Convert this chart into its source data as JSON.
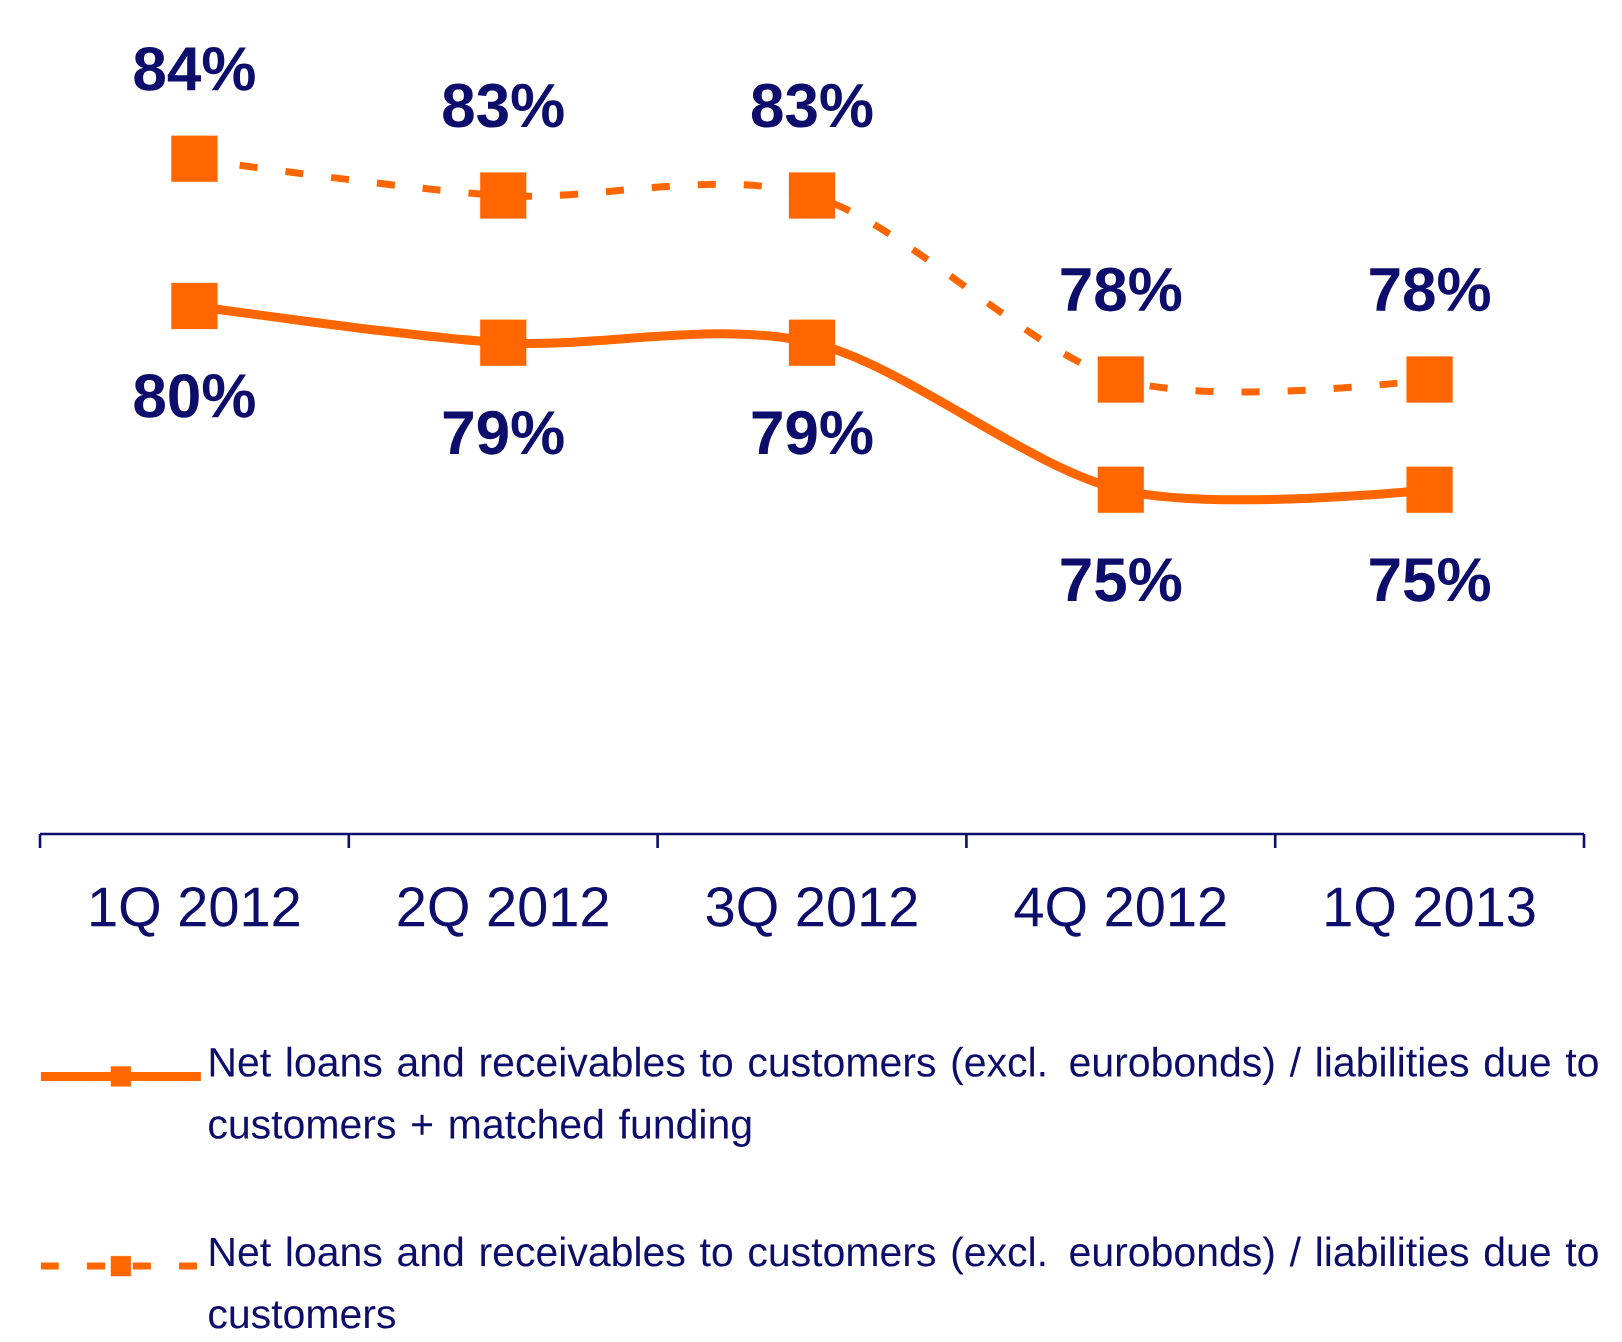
{
  "chart_data": {
    "type": "line",
    "categories": [
      "1Q 2012",
      "2Q 2012",
      "3Q 2012",
      "4Q 2012",
      "1Q 2013"
    ],
    "series": [
      {
        "name": "Net loans and receivables to customers (excl. eurobonds) / liabilities due to customers + matched funding",
        "color": "#ff6600",
        "line_style": "solid",
        "values": [
          80,
          79,
          79,
          75,
          75
        ],
        "value_labels": [
          "80%",
          "79%",
          "79%",
          "75%",
          "75%"
        ]
      },
      {
        "name": "Net loans and receivables to customers (excl. eurobonds) / liabilities due to customers",
        "color": "#ff6600",
        "line_style": "dashed",
        "values": [
          84,
          83,
          83,
          78,
          78
        ],
        "value_labels": [
          "84%",
          "83%",
          "83%",
          "78%",
          "78%"
        ]
      }
    ],
    "marker": "square",
    "legend": "bottom",
    "tick_labels": "x"
  }
}
